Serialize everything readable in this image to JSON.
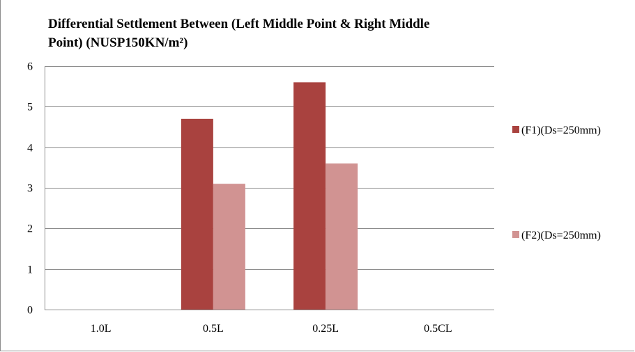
{
  "chart_data": {
    "type": "bar",
    "title_line1": "Differential Settlement Between (Left Middle Point & Right Middle",
    "title_line2": "Point) (NUSP150KN/m²)",
    "xlabel": "",
    "ylabel": "",
    "categories": [
      "1.0L",
      "0.5L",
      "0.25L",
      "0.5CL"
    ],
    "series": [
      {
        "name": "(F1)(Ds=250mm)",
        "color": "#a9423f",
        "values": [
          0,
          4.7,
          5.6,
          0
        ]
      },
      {
        "name": "(F2)(Ds=250mm)",
        "color": "#d19392",
        "values": [
          0,
          3.1,
          3.6,
          0
        ]
      }
    ],
    "ylim": [
      0,
      6
    ],
    "yticks": [
      0,
      1,
      2,
      3,
      4,
      5,
      6
    ],
    "grid": true,
    "legend": "right"
  }
}
